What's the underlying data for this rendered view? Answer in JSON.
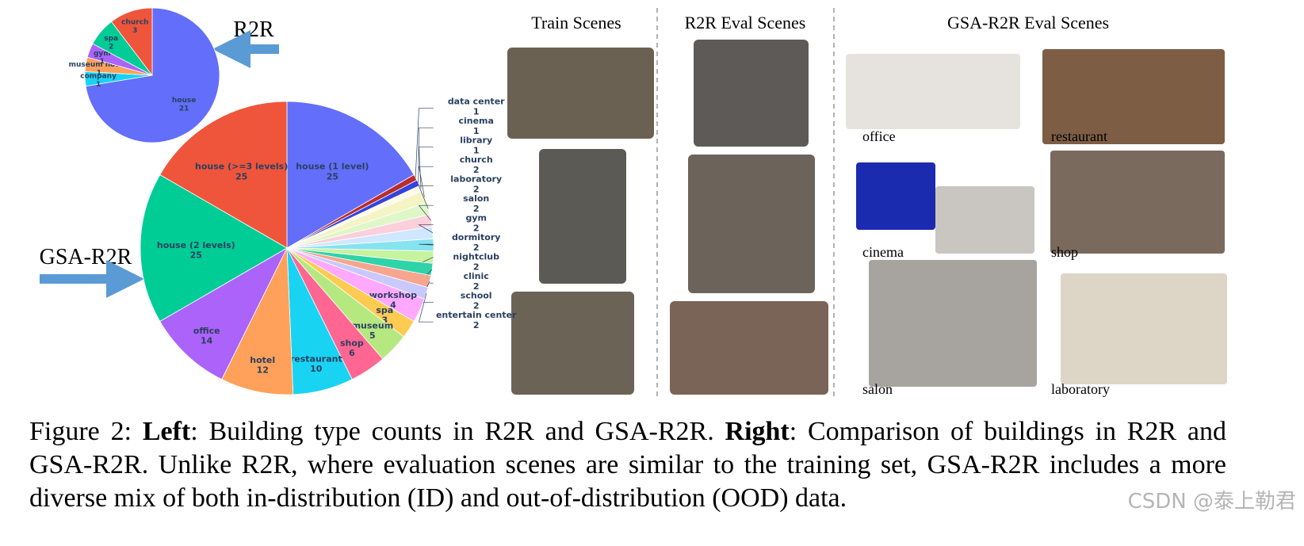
{
  "chart_data": [
    {
      "type": "pie",
      "title": "R2R",
      "categories": [
        "house",
        "company",
        "museum house",
        "gym",
        "spa",
        "church"
      ],
      "values": [
        21,
        1,
        1,
        1,
        2,
        3
      ],
      "colors": [
        "#636efa",
        "#19d3f3",
        "#ffa15a",
        "#ab63fa",
        "#00cc96",
        "#ef553b"
      ]
    },
    {
      "type": "pie",
      "title": "GSA-R2R",
      "categories": [
        "house (1 level)",
        "data center",
        "cinema",
        "library",
        "church",
        "laboratory",
        "salon",
        "gym",
        "dormitory",
        "nightclub",
        "clinic",
        "school",
        "entertain center",
        "workshop",
        "spa",
        "museum",
        "shop",
        "restaurant",
        "hotel",
        "office",
        "house (2 levels)",
        "house (>=3 levels)"
      ],
      "values": [
        25,
        1,
        1,
        1,
        2,
        2,
        2,
        2,
        2,
        2,
        2,
        2,
        2,
        4,
        3,
        5,
        6,
        10,
        12,
        14,
        25,
        25
      ],
      "colors": [
        "#636efa",
        "#b82e2e",
        "#3344dd",
        "#fffbe8",
        "#f4f4c4",
        "#dff7c8",
        "#fbd0dc",
        "#cfe7ff",
        "#86e3f0",
        "#c7f29e",
        "#2ed3a8",
        "#f7a58f",
        "#c9c9ff",
        "#ffa8ff",
        "#fecb52",
        "#b6e880",
        "#ff6692",
        "#19d3f3",
        "#ffa15a",
        "#ab63fa",
        "#00cc96",
        "#ef553b"
      ]
    }
  ],
  "panels": {
    "headers": [
      "Train Scenes",
      "R2R Eval Scenes",
      "GSA-R2R Eval Scenes"
    ],
    "gsa_labels": [
      "office",
      "restaurant",
      "cinema",
      "shop",
      "salon",
      "laboratory"
    ]
  },
  "caption": [
    {
      "text": "Figure 2: ",
      "bold": false
    },
    {
      "text": "Left",
      "bold": true
    },
    {
      "text": ": Building type counts in R2R and GSA-R2R. ",
      "bold": false
    },
    {
      "text": "Right",
      "bold": true
    },
    {
      "text": ": Comparison of buildings in R2R and GSA-R2R. Unlike R2R, where evaluation scenes are similar to the training set, GSA-R2R includes a more diverse mix of both in-distribution (ID) and out-of-distribution (OOD) data.",
      "bold": false
    }
  ],
  "watermark": "CSDN @泰上勒君"
}
